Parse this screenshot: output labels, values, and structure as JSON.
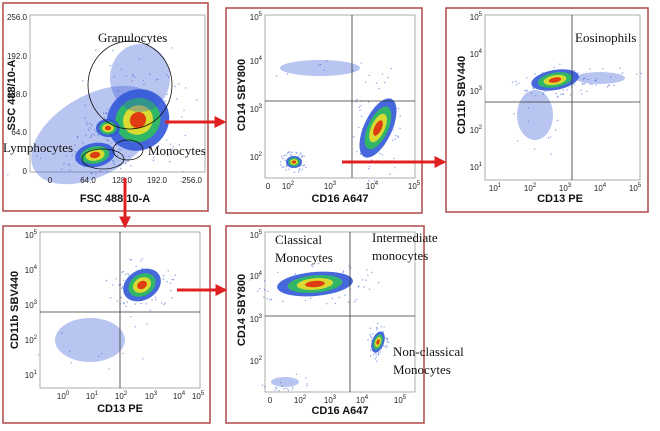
{
  "panels": [
    {
      "y_axis_label": "SSC 488/10-A",
      "x_axis_label": "FSC 488/10-A",
      "yticks": [
        {
          "base": "256.0"
        },
        {
          "base": "192.0"
        },
        {
          "base": "128.0"
        },
        {
          "base": "64.0"
        },
        {
          "base": "0"
        }
      ],
      "xticks": [
        {
          "base": "0"
        },
        {
          "base": "64.0"
        },
        {
          "base": "128.0"
        },
        {
          "base": "192.0"
        },
        {
          "base": "256.0"
        }
      ],
      "labels": [
        [
          "Granulocytes"
        ],
        [
          "Lymphocytes"
        ],
        [
          "Monocytes"
        ]
      ]
    },
    {
      "y_axis_label": "CD14 SBY800",
      "x_axis_label": "CD16 A647",
      "yticks": [
        {
          "base": "10",
          "sup": "5"
        },
        {
          "base": "10",
          "sup": "4"
        },
        {
          "base": "10",
          "sup": "3"
        },
        {
          "base": "10",
          "sup": "2"
        }
      ],
      "xticks": [
        {
          "base": "0"
        },
        {
          "base": "10",
          "sup": "2"
        },
        {
          "base": "10",
          "sup": "3"
        },
        {
          "base": "10",
          "sup": "4"
        },
        {
          "base": "10",
          "sup": "5"
        }
      ],
      "labels": []
    },
    {
      "y_axis_label": "CD11b SBV440",
      "x_axis_label": "CD13 PE",
      "yticks": [
        {
          "base": "10",
          "sup": "5"
        },
        {
          "base": "10",
          "sup": "4"
        },
        {
          "base": "10",
          "sup": "3"
        },
        {
          "base": "10",
          "sup": "2"
        },
        {
          "base": "10",
          "sup": "1"
        }
      ],
      "xticks": [
        {
          "base": "10",
          "sup": "1"
        },
        {
          "base": "10",
          "sup": "2"
        },
        {
          "base": "10",
          "sup": "3"
        },
        {
          "base": "10",
          "sup": "4"
        },
        {
          "base": "10",
          "sup": "5"
        }
      ],
      "labels": [
        [
          "Eosinophils"
        ]
      ]
    },
    {
      "y_axis_label": "CD11b SBV440",
      "x_axis_label": "CD13 PE",
      "yticks": [
        {
          "base": "10",
          "sup": "5"
        },
        {
          "base": "10",
          "sup": "4"
        },
        {
          "base": "10",
          "sup": "3"
        },
        {
          "base": "10",
          "sup": "2"
        },
        {
          "base": "10",
          "sup": "1"
        }
      ],
      "xticks": [
        {
          "base": "10",
          "sup": "0"
        },
        {
          "base": "10",
          "sup": "1"
        },
        {
          "base": "10",
          "sup": "2"
        },
        {
          "base": "10",
          "sup": "3"
        },
        {
          "base": "10",
          "sup": "4"
        },
        {
          "base": "10",
          "sup": "5"
        }
      ],
      "labels": []
    },
    {
      "y_axis_label": "CD14 SBY800",
      "x_axis_label": "CD16 A647",
      "yticks": [
        {
          "base": "10",
          "sup": "5"
        },
        {
          "base": "10",
          "sup": "4"
        },
        {
          "base": "10",
          "sup": "3"
        },
        {
          "base": "10",
          "sup": "2"
        }
      ],
      "xticks": [
        {
          "base": "0"
        },
        {
          "base": "10",
          "sup": "2"
        },
        {
          "base": "10",
          "sup": "3"
        },
        {
          "base": "10",
          "sup": "4"
        },
        {
          "base": "10",
          "sup": "5"
        }
      ],
      "labels": [
        [
          "Classical",
          "Monocytes"
        ],
        [
          "Intermediate",
          "monocytes"
        ],
        [
          "Non-classical",
          "Monocytes"
        ]
      ]
    }
  ]
}
